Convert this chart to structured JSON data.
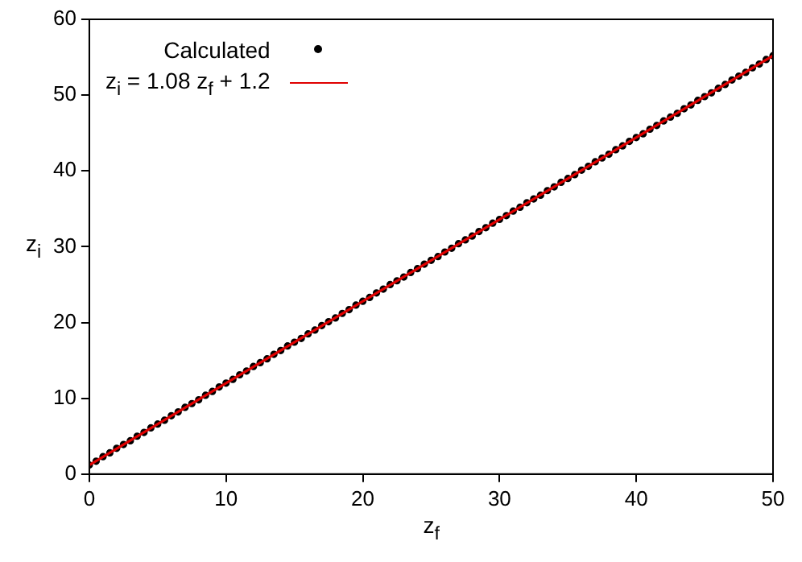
{
  "chart_data": {
    "type": "scatter",
    "xlabel": "z$_{f}$",
    "ylabel": "z$_{i}$",
    "xlim": [
      0,
      50
    ],
    "xticks": [
      0,
      10,
      20,
      30,
      40,
      50
    ],
    "ylim": [
      0,
      60
    ],
    "yticks": [
      0,
      10,
      20,
      30,
      40,
      50,
      60
    ],
    "grid": false,
    "legend": "top left",
    "series": [
      {
        "name": "Calculated",
        "type": "scatter",
        "marker": "circle",
        "color": "#000000",
        "x": [
          0,
          0.5,
          1,
          1.5,
          2,
          2.5,
          3,
          3.5,
          4,
          4.5,
          5,
          5.5,
          6,
          6.5,
          7,
          7.5,
          8,
          8.5,
          9,
          9.5,
          10,
          10.5,
          11,
          11.5,
          12,
          12.5,
          13,
          13.5,
          14,
          14.5,
          15,
          15.5,
          16,
          16.5,
          17,
          17.5,
          18,
          18.5,
          19,
          19.5,
          20,
          20.5,
          21,
          21.5,
          22,
          22.5,
          23,
          23.5,
          24,
          24.5,
          25,
          25.5,
          26,
          26.5,
          27,
          27.5,
          28,
          28.5,
          29,
          29.5,
          30,
          30.5,
          31,
          31.5,
          32,
          32.5,
          33,
          33.5,
          34,
          34.5,
          35,
          35.5,
          36,
          36.5,
          37,
          37.5,
          38,
          38.5,
          39,
          39.5,
          40,
          40.5,
          41,
          41.5,
          42,
          42.5,
          43,
          43.5,
          44,
          44.5,
          45,
          45.5,
          46,
          46.5,
          47,
          47.5,
          48,
          48.5,
          49,
          49.5,
          50
        ],
        "values": [
          1.2,
          1.7,
          2.3,
          2.8,
          3.4,
          3.9,
          4.4,
          5.0,
          5.5,
          6.1,
          6.6,
          7.1,
          7.7,
          8.2,
          8.8,
          9.3,
          9.8,
          10.4,
          10.9,
          11.5,
          12.0,
          12.5,
          13.1,
          13.6,
          14.2,
          14.7,
          15.2,
          15.8,
          16.3,
          16.9,
          17.4,
          17.9,
          18.5,
          19.0,
          19.6,
          20.1,
          20.6,
          21.2,
          21.7,
          22.3,
          22.8,
          23.3,
          23.9,
          24.4,
          25.0,
          25.5,
          26.0,
          26.6,
          27.1,
          27.7,
          28.2,
          28.7,
          29.3,
          29.8,
          30.4,
          30.9,
          31.4,
          32.0,
          32.5,
          33.1,
          33.6,
          34.1,
          34.7,
          35.2,
          35.8,
          36.3,
          36.8,
          37.4,
          37.9,
          38.5,
          39.0,
          39.5,
          40.1,
          40.6,
          41.2,
          41.7,
          42.2,
          42.8,
          43.3,
          43.9,
          44.4,
          44.9,
          45.5,
          46.0,
          46.6,
          47.1,
          47.6,
          48.2,
          48.7,
          49.3,
          49.8,
          50.3,
          50.9,
          51.4,
          52.0,
          52.5,
          53.0,
          53.6,
          54.1,
          54.7,
          55.2
        ]
      },
      {
        "name": "z$_{i}$ = 1.08 z$_{f}$ + 1.2",
        "type": "line",
        "line_style": "solid",
        "color": "#e00000",
        "x": [
          0,
          50
        ],
        "values": [
          1.2,
          55.2
        ]
      }
    ]
  }
}
